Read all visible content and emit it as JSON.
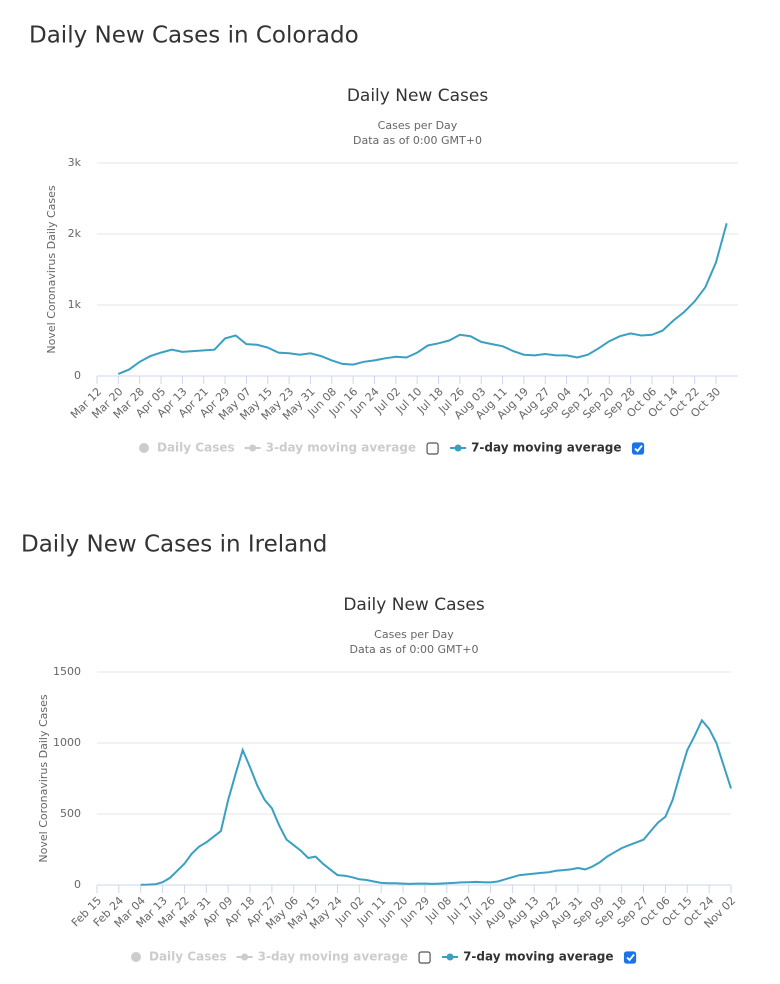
{
  "headings": [
    "Daily New Cases in Colorado",
    "Daily New Cases in Ireland"
  ],
  "chart_data": [
    {
      "type": "line",
      "title": "Daily New Cases",
      "subtitle": [
        "Cases per Day",
        "Data as of 0:00 GMT+0"
      ],
      "y_label": "Novel Coronavirus Daily Cases",
      "categories": [
        "Mar 12",
        null,
        "Mar 20",
        null,
        "Mar 28",
        null,
        "Apr 05",
        null,
        "Apr 13",
        null,
        "Apr 21",
        null,
        "Apr 29",
        null,
        "May 07",
        null,
        "May 15",
        null,
        "May 23",
        null,
        "May 31",
        null,
        "Jun 08",
        null,
        "Jun 16",
        null,
        "Jun 24",
        null,
        "Jul 02",
        null,
        "Jul 10",
        null,
        "Jul 18",
        null,
        "Jul 26",
        null,
        "Aug 03",
        null,
        "Aug 11",
        null,
        "Aug 19",
        null,
        "Aug 27",
        null,
        "Sep 04",
        null,
        "Sep 12",
        null,
        "Sep 20",
        null,
        "Sep 28",
        null,
        "Oct 06",
        null,
        "Oct 14",
        null,
        "Oct 22",
        null,
        "Oct 30",
        null
      ],
      "series": [
        {
          "name": "Daily Cases",
          "color": "#cccccc",
          "visible": false
        },
        {
          "name": "3-day moving average",
          "color": "#cccccc",
          "visible": false,
          "checked": false
        },
        {
          "name": "7-day moving average",
          "color": "#3aa0c2",
          "visible": true,
          "checked": true,
          "values": [
            null,
            null,
            30,
            90,
            200,
            280,
            330,
            370,
            340,
            350,
            360,
            370,
            530,
            570,
            450,
            440,
            400,
            330,
            320,
            300,
            320,
            280,
            220,
            170,
            160,
            200,
            220,
            250,
            270,
            260,
            330,
            430,
            460,
            500,
            580,
            560,
            480,
            450,
            420,
            350,
            300,
            290,
            310,
            290,
            290,
            260,
            300,
            390,
            490,
            560,
            600,
            570,
            580,
            640,
            780,
            900,
            1050,
            1250,
            1600,
            2150
          ]
        }
      ],
      "ylim": [
        0,
        3000
      ],
      "yticks": [
        0,
        {
          "value": 1000,
          "label": "1k"
        },
        {
          "value": 2000,
          "label": "2k"
        },
        {
          "value": 3000,
          "label": "3k"
        }
      ],
      "grid": true
    },
    {
      "type": "line",
      "title": "Daily New Cases",
      "subtitle": [
        "Cases per Day",
        "Data as of 0:00 GMT+0"
      ],
      "y_label": "Novel Coronavirus Daily Cases",
      "categories": [
        "Feb 15",
        null,
        null,
        "Feb 24",
        null,
        null,
        "Mar 04",
        null,
        null,
        "Mar 13",
        null,
        null,
        "Mar 22",
        null,
        null,
        "Mar 31",
        null,
        null,
        "Apr 09",
        null,
        null,
        "Apr 18",
        null,
        null,
        "Apr 27",
        null,
        null,
        "May 06",
        null,
        null,
        "May 15",
        null,
        null,
        "May 24",
        null,
        null,
        "Jun 02",
        null,
        null,
        "Jun 11",
        null,
        null,
        "Jun 20",
        null,
        null,
        "Jun 29",
        null,
        null,
        "Jul 08",
        null,
        null,
        "Jul 17",
        null,
        null,
        "Jul 26",
        null,
        null,
        "Aug 04",
        null,
        null,
        "Aug 13",
        null,
        null,
        "Aug 22",
        null,
        null,
        "Aug 31",
        null,
        null,
        "Sep 09",
        null,
        null,
        "Sep 18",
        null,
        null,
        "Sep 27",
        null,
        null,
        "Oct 06",
        null,
        null,
        "Oct 15",
        null,
        null,
        "Oct 24",
        null,
        null,
        "Nov 02"
      ],
      "series": [
        {
          "name": "Daily Cases",
          "color": "#cccccc",
          "visible": false
        },
        {
          "name": "3-day moving average",
          "color": "#cccccc",
          "visible": false,
          "checked": false
        },
        {
          "name": "7-day moving average",
          "color": "#3aa0c2",
          "visible": true,
          "checked": true,
          "values": [
            null,
            null,
            null,
            null,
            null,
            null,
            2,
            3,
            5,
            20,
            50,
            100,
            150,
            220,
            270,
            300,
            340,
            380,
            600,
            780,
            950,
            830,
            700,
            600,
            540,
            420,
            320,
            280,
            240,
            190,
            200,
            150,
            110,
            70,
            65,
            55,
            40,
            35,
            25,
            15,
            12,
            12,
            10,
            8,
            10,
            10,
            8,
            10,
            12,
            15,
            18,
            20,
            22,
            20,
            18,
            25,
            40,
            55,
            70,
            75,
            80,
            85,
            90,
            100,
            105,
            110,
            120,
            110,
            130,
            160,
            200,
            230,
            260,
            280,
            300,
            320,
            380,
            440,
            480,
            600,
            780,
            950,
            1050,
            1160,
            1100,
            1000,
            840,
            680
          ]
        }
      ],
      "ylim": [
        0,
        1500
      ],
      "yticks": [
        0,
        500,
        1000,
        1500
      ],
      "grid": true
    }
  ]
}
